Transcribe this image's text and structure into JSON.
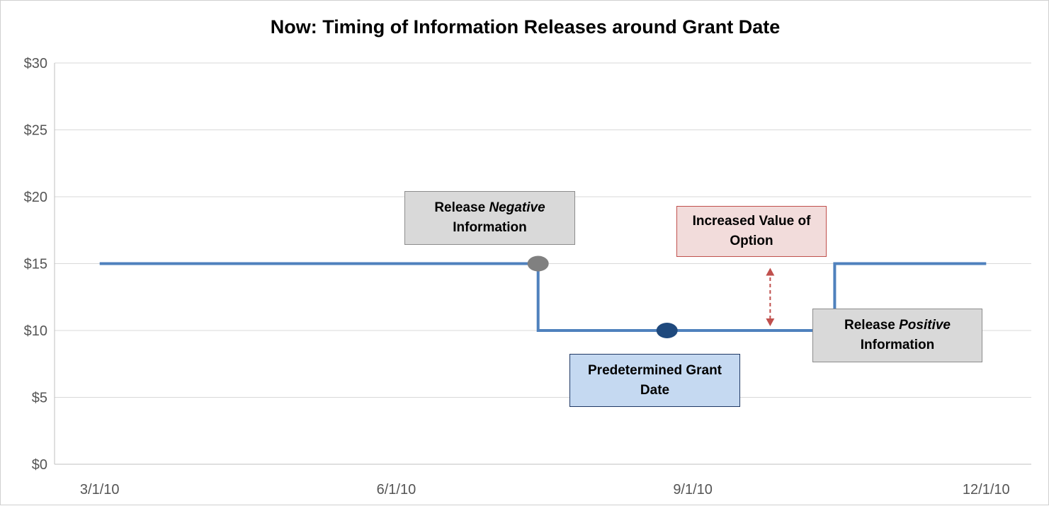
{
  "chart_data": {
    "type": "line",
    "title": "Now: Timing of Information Releases around Grant Date",
    "xlabel": "",
    "ylabel": "",
    "ylim": [
      0,
      30
    ],
    "y_ticks": [
      "$0",
      "$5",
      "$10",
      "$15",
      "$20",
      "$25",
      "$30"
    ],
    "x_ticks": [
      "3/1/10",
      "6/1/10",
      "9/1/10",
      "12/1/10"
    ],
    "grid": "horizontal",
    "series": [
      {
        "x": [
          "3/1/10",
          "7/15/10",
          "7/15/10",
          "10/15/10",
          "10/15/10",
          "12/1/10"
        ],
        "y": [
          15,
          15,
          10,
          10,
          15,
          15
        ],
        "color": "#4f81bd"
      }
    ],
    "markers": [
      {
        "x": "7/15/10",
        "y": 15,
        "color": "#808080"
      },
      {
        "x": "8/24/10",
        "y": 10,
        "color": "#1f497d"
      },
      {
        "x": "10/15/10",
        "y": 10,
        "color": "#808080"
      }
    ],
    "arrow": {
      "x": "9/25/10",
      "y_from": 10,
      "y_to": 15,
      "color": "#c0504d"
    },
    "annotations": {
      "negative": {
        "prefix": "Release ",
        "emph": "Negative",
        "line2": "Information"
      },
      "value": {
        "line1": "Increased Value of",
        "line2": "Option"
      },
      "grant": {
        "line1": "Predetermined Grant",
        "line2": "Date"
      },
      "positive": {
        "prefix": "Release ",
        "emph": "Positive",
        "line2": "Information"
      }
    }
  }
}
